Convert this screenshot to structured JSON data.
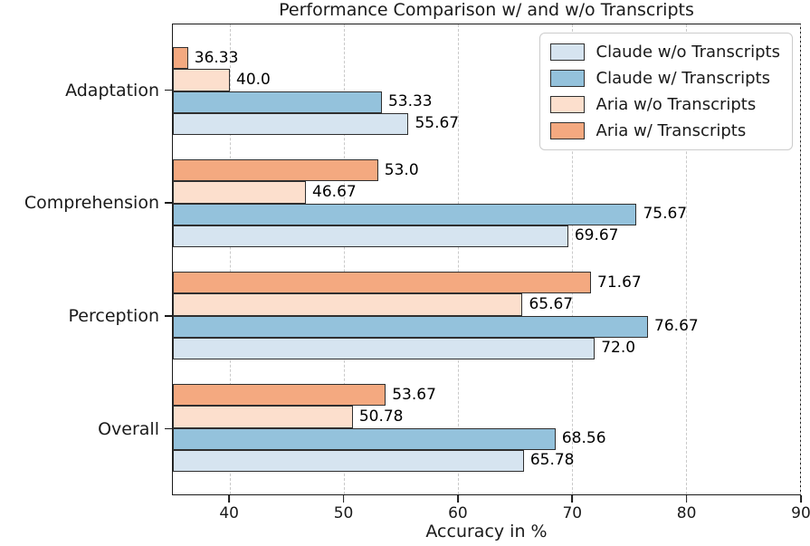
{
  "chart_data": {
    "type": "bar",
    "orientation": "horizontal",
    "title": "Performance Comparison w/ and w/o Transcripts",
    "xlabel": "Accuracy in %",
    "xlim": [
      35,
      90
    ],
    "xticks": [
      "40",
      "50",
      "60",
      "70",
      "80",
      "90"
    ],
    "xtick_values": [
      40,
      50,
      60,
      70,
      80,
      90
    ],
    "grid": "vertical-dashed",
    "legend_position": "upper-right",
    "bar_labels": true,
    "bar_order_top_to_bottom": [
      3,
      2,
      1,
      0
    ],
    "categories": [
      "Adaptation",
      "Comprehension",
      "Perception",
      "Overall"
    ],
    "series": [
      {
        "name": "Claude w/o Transcripts",
        "color": "#d6e4f0",
        "values": [
          55.67,
          69.67,
          72.0,
          65.78
        ],
        "labels": [
          "55.67",
          "69.67",
          "72.0",
          "65.78"
        ]
      },
      {
        "name": "Claude w/ Transcripts",
        "color": "#94c2dc",
        "values": [
          53.33,
          75.67,
          76.67,
          68.56
        ],
        "labels": [
          "53.33",
          "75.67",
          "76.67",
          "68.56"
        ]
      },
      {
        "name": "Aria w/o Transcripts",
        "color": "#fcdfcd",
        "values": [
          40.0,
          46.67,
          65.67,
          50.78
        ],
        "labels": [
          "40.0",
          "46.67",
          "65.67",
          "50.78"
        ]
      },
      {
        "name": "Aria w/ Transcripts",
        "color": "#f4a980",
        "values": [
          36.33,
          53.0,
          71.67,
          53.67
        ],
        "labels": [
          "36.33",
          "53.0",
          "71.67",
          "53.67"
        ]
      }
    ]
  },
  "colors": {
    "bar_edge": "#2f2f2f",
    "grid": "#c9c9c9",
    "axis": "#1a1a1a",
    "legend_border": "#cccccc",
    "background": "#ffffff"
  }
}
